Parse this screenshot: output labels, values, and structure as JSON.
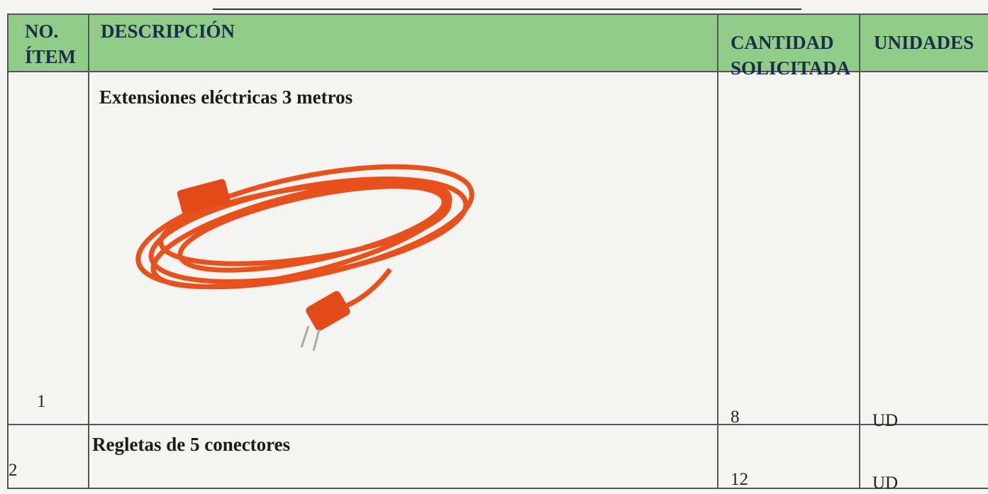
{
  "table": {
    "header": [
      "NO. ÍTEM",
      "DESCRIPCIÓN",
      "CANTIDAD SOLICITADA",
      "UNIDADES"
    ],
    "rows": [
      [
        1,
        "Extensiones eléctricas 3 metros",
        8,
        "UD"
      ],
      [
        2,
        "Regletas de 5 conectores",
        12,
        "UD"
      ]
    ]
  }
}
